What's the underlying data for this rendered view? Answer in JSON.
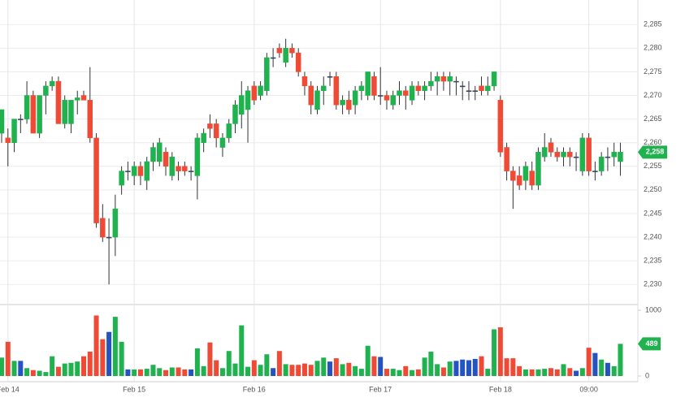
{
  "chart_data": {
    "type": "candlestick",
    "categories": [
      null,
      "Feb 14",
      null,
      null,
      null,
      null,
      null,
      null,
      null,
      null,
      null,
      null,
      null,
      null,
      null,
      null,
      null,
      null,
      null,
      null,
      null,
      "Feb 15",
      null,
      null,
      null,
      null,
      null,
      null,
      null,
      null,
      null,
      null,
      null,
      null,
      null,
      null,
      null,
      null,
      null,
      null,
      "Feb 16",
      null,
      null,
      null,
      null,
      null,
      null,
      null,
      null,
      null,
      null,
      null,
      null,
      null,
      null,
      null,
      null,
      null,
      null,
      null,
      "Feb 17",
      null,
      null,
      null,
      null,
      null,
      null,
      null,
      null,
      null,
      null,
      null,
      null,
      null,
      null,
      null,
      null,
      null,
      null,
      "Feb 18",
      null,
      null,
      null,
      null,
      null,
      null,
      null,
      null,
      null,
      null,
      null,
      null,
      null,
      "09:00",
      null,
      null,
      null,
      null,
      null
    ],
    "ohlc": [
      [
        2262,
        2267,
        2260,
        2267
      ],
      [
        2261,
        2263,
        2255,
        2260
      ],
      [
        2260,
        2265,
        2258,
        2265
      ],
      [
        2265,
        2266,
        2262,
        2265
      ],
      [
        2265,
        2273,
        2264,
        2270
      ],
      [
        2270,
        2271,
        2262,
        2262
      ],
      [
        2262,
        2270,
        2261,
        2270
      ],
      [
        2270,
        2273,
        2266,
        2272
      ],
      [
        2272,
        2274,
        2271,
        2273
      ],
      [
        2273,
        2274,
        2264,
        2264
      ],
      [
        2264,
        2270,
        2263,
        2269
      ],
      [
        2264,
        2269,
        2262,
        2269
      ],
      [
        2269,
        2271,
        2266,
        2269.5
      ],
      [
        2270,
        2271,
        2269,
        2269
      ],
      [
        2269,
        2276,
        2260,
        2261
      ],
      [
        2261,
        2262,
        2242,
        2243
      ],
      [
        2244,
        2247,
        2239,
        2240
      ],
      [
        2240,
        2244,
        2230,
        2240
      ],
      [
        2240,
        2249,
        2236,
        2246
      ],
      [
        2251,
        2255,
        2249,
        2254
      ],
      [
        2254,
        2256,
        2252,
        2254
      ],
      [
        2253,
        2256,
        2251,
        2255
      ],
      [
        2255,
        2256,
        2251,
        2253
      ],
      [
        2252,
        2257,
        2250,
        2256
      ],
      [
        2256,
        2260,
        2254,
        2259
      ],
      [
        2256,
        2261,
        2255,
        2260
      ],
      [
        2258,
        2259,
        2253,
        2255
      ],
      [
        2253,
        2258,
        2252,
        2257
      ],
      [
        2255,
        2256,
        2252,
        2254
      ],
      [
        2255,
        2256,
        2253,
        2254
      ],
      [
        2254,
        2255,
        2252,
        2254
      ],
      [
        2253,
        2262,
        2248,
        2261
      ],
      [
        2260,
        2263,
        2258,
        2262
      ],
      [
        2264,
        2266,
        2261,
        2263
      ],
      [
        2264,
        2265,
        2259,
        2261
      ],
      [
        2259,
        2262,
        2257,
        2261
      ],
      [
        2261,
        2265,
        2260,
        2264
      ],
      [
        2264,
        2269,
        2262,
        2268
      ],
      [
        2266,
        2273,
        2263,
        2270
      ],
      [
        2267,
        2272,
        2260,
        2271
      ],
      [
        2272,
        2273,
        2268,
        2269
      ],
      [
        2270,
        2273,
        2269,
        2272
      ],
      [
        2271,
        2279,
        2270,
        2278
      ],
      [
        2278,
        2280,
        2276,
        2278
      ],
      [
        2280,
        2281,
        2278,
        2279
      ],
      [
        2277,
        2282,
        2276,
        2280
      ],
      [
        2280,
        2281,
        2278,
        2279
      ],
      [
        2279,
        2280,
        2274,
        2275
      ],
      [
        2274,
        2275,
        2270,
        2272
      ],
      [
        2272,
        2273,
        2266,
        2268
      ],
      [
        2267,
        2272,
        2266,
        2271
      ],
      [
        2271,
        2274,
        2268,
        2272
      ],
      [
        2274,
        2275,
        2272,
        2274
      ],
      [
        2274,
        2275,
        2267,
        2268
      ],
      [
        2268,
        2270,
        2266,
        2269
      ],
      [
        2269,
        2271,
        2266,
        2267
      ],
      [
        2268,
        2272,
        2266,
        2271
      ],
      [
        2271,
        2273,
        2269,
        2272
      ],
      [
        2270,
        2275,
        2269,
        2275
      ],
      [
        2274,
        2275,
        2269,
        2270
      ],
      [
        2270,
        2276,
        2268,
        2270
      ],
      [
        2270,
        2271,
        2267,
        2269
      ],
      [
        2268,
        2271,
        2267,
        2270
      ],
      [
        2270,
        2273,
        2268,
        2271
      ],
      [
        2271,
        2272,
        2267,
        2270
      ],
      [
        2269,
        2273,
        2268,
        2272
      ],
      [
        2272,
        2273,
        2270,
        2271
      ],
      [
        2271,
        2273,
        2269,
        2272
      ],
      [
        2272,
        2275,
        2271,
        2273
      ],
      [
        2273,
        2275,
        2270,
        2274
      ],
      [
        2274,
        2275,
        2271,
        2273
      ],
      [
        2273,
        2275,
        2270,
        2274
      ],
      [
        2273,
        2274,
        2270,
        2273
      ],
      [
        2272,
        2273,
        2269,
        2272
      ],
      [
        2271,
        2273,
        2269,
        2271
      ],
      [
        2271,
        2272,
        2269,
        2271
      ],
      [
        2272,
        2274,
        2270,
        2271
      ],
      [
        2271,
        2274,
        2270,
        2272
      ],
      [
        2272,
        2275,
        2271,
        2275
      ],
      [
        2269,
        2270,
        2257,
        2258
      ],
      [
        2259,
        2260,
        2252,
        2254
      ],
      [
        2254,
        2255,
        2246,
        2252
      ],
      [
        2253,
        2255,
        2250,
        2251
      ],
      [
        2252,
        2256,
        2250,
        2255
      ],
      [
        2254,
        2256,
        2250,
        2251
      ],
      [
        2251,
        2259,
        2250,
        2258
      ],
      [
        2257,
        2262,
        2256,
        2259
      ],
      [
        2260,
        2261,
        2257,
        2258
      ],
      [
        2258,
        2259,
        2256,
        2257
      ],
      [
        2257,
        2259,
        2255,
        2258
      ],
      [
        2258,
        2259,
        2255,
        2257
      ],
      [
        2257,
        2258,
        2254,
        2257
      ],
      [
        2254,
        2262,
        2253,
        2261
      ],
      [
        2261,
        2262,
        2253,
        2254
      ],
      [
        2254,
        2256,
        2252,
        2254
      ],
      [
        2254,
        2258,
        2253,
        2257
      ],
      [
        2257,
        2259,
        2254,
        2257
      ],
      [
        2257,
        2260,
        2255,
        2258
      ],
      [
        2256,
        2260,
        2253,
        2258
      ]
    ],
    "ylim": [
      2226.6,
      2290.2
    ],
    "yticks": [
      {
        "value": 2230,
        "label": "2,230"
      },
      {
        "value": 2235,
        "label": "2,235"
      },
      {
        "value": 2240,
        "label": "2,240"
      },
      {
        "value": 2245,
        "label": "2,245"
      },
      {
        "value": 2250,
        "label": "2,250"
      },
      {
        "value": 2255,
        "label": "2,255"
      },
      {
        "value": 2260,
        "label": "2,260"
      },
      {
        "value": 2265,
        "label": "2,265"
      },
      {
        "value": 2270,
        "label": "2,270"
      },
      {
        "value": 2275,
        "label": "2,275"
      },
      {
        "value": 2280,
        "label": "2,280"
      },
      {
        "value": 2285,
        "label": "2,285"
      }
    ],
    "last_price": {
      "value": 2258,
      "label": "2,258"
    },
    "volume": {
      "values": [
        280,
        520,
        230,
        230,
        120,
        90,
        80,
        60,
        300,
        140,
        190,
        200,
        220,
        300,
        370,
        920,
        560,
        670,
        900,
        520,
        100,
        100,
        100,
        110,
        170,
        120,
        90,
        130,
        130,
        100,
        100,
        420,
        150,
        510,
        240,
        120,
        380,
        190,
        770,
        140,
        240,
        170,
        330,
        120,
        380,
        180,
        170,
        170,
        190,
        170,
        230,
        280,
        220,
        270,
        180,
        200,
        150,
        110,
        460,
        300,
        290,
        110,
        110,
        90,
        150,
        90,
        100,
        280,
        370,
        180,
        130,
        220,
        230,
        250,
        240,
        260,
        300,
        110,
        710,
        740,
        270,
        270,
        150,
        100,
        100,
        100,
        110,
        120,
        100,
        180,
        120,
        80,
        120,
        430,
        350,
        250,
        200,
        150,
        489
      ],
      "ylim": [
        0,
        1000
      ],
      "yticks": [
        0,
        1000
      ]
    },
    "colors": {
      "up": "#1fb24e",
      "down": "#ef4a35",
      "flat": "#2453c2",
      "badge": "#1fb24e"
    },
    "grid": true
  }
}
